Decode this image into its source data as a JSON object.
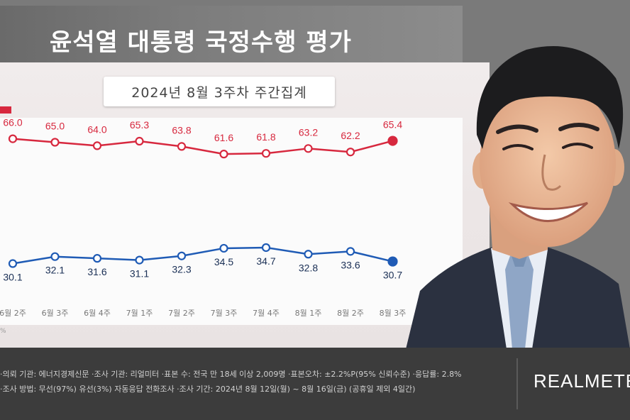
{
  "header": {
    "title": "윤석열 대통령 국정수행 평가"
  },
  "chart_data": {
    "type": "line",
    "subtitle": "2024년 8월 3주차 주간집계",
    "categories": [
      "6월 2주",
      "6월 3주",
      "6월 4주",
      "7월 1주",
      "7월 2주",
      "7월 3주",
      "7월 4주",
      "8월 1주",
      "8월 2주",
      "8월 3주"
    ],
    "series": [
      {
        "values": [
          66.0,
          65.0,
          64.0,
          65.3,
          63.8,
          61.6,
          61.8,
          63.2,
          62.2,
          65.4
        ],
        "color": "#d7283e"
      },
      {
        "values": [
          30.1,
          32.1,
          31.6,
          31.1,
          32.3,
          34.5,
          34.7,
          32.8,
          33.6,
          30.7
        ],
        "color": "#1f5bb5"
      }
    ],
    "value_labels": [
      [
        "66.0",
        "65.0",
        "64.0",
        "65.3",
        "63.8",
        "61.6",
        "61.8",
        "63.2",
        "62.2",
        "65.4"
      ],
      [
        "30.1",
        "32.1",
        "31.6",
        "31.1",
        "32.3",
        "34.5",
        "34.7",
        "32.8",
        "33.6",
        "30.7"
      ]
    ],
    "ylim": [
      20,
      70
    ],
    "grid": false
  },
  "footnote": "%",
  "footer": {
    "line1": "·의뢰 기관: 에너지경제신문 ·조사 기관: 리얼미터 ·표본 수: 전국 만 18세 이상 2,009명 ·표본오차: ±2.2%P(95% 신뢰수준) ·응답률: 2.8%",
    "line2": "·조사 방법: 무선(97%) 유선(3%) 자동응답 전화조사 ·조사 기간: 2024년 8월 12일(월) ~ 8월 16일(금) (공휴일 제외 4일간)",
    "brand": "REALMETER"
  },
  "colors": {
    "approve": "#d7283e",
    "disapprove": "#1f5bb5",
    "footer_bg": "#3c3c3c"
  }
}
